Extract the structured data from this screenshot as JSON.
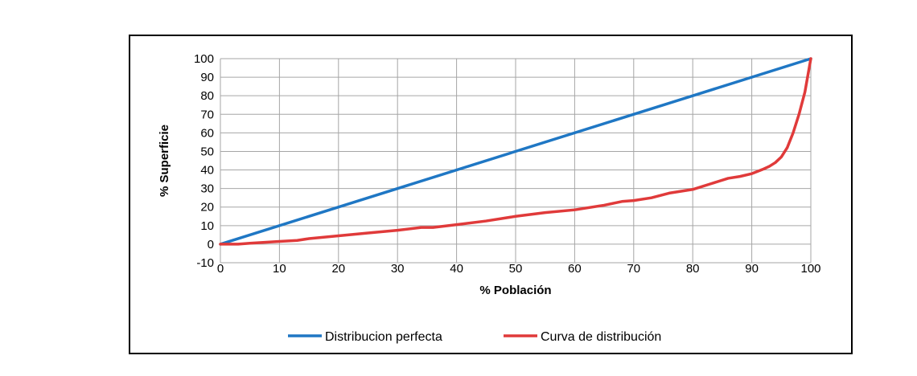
{
  "chart_data": {
    "type": "line",
    "xlabel": "% Población",
    "ylabel": "% Superficie",
    "xlim": [
      0,
      100
    ],
    "ylim": [
      -10,
      100
    ],
    "x_ticks": [
      0,
      10,
      20,
      30,
      40,
      50,
      60,
      70,
      80,
      90,
      100
    ],
    "y_ticks": [
      -10,
      0,
      10,
      20,
      30,
      40,
      50,
      60,
      70,
      80,
      90,
      100
    ],
    "grid": true,
    "legend_position": "bottom",
    "series": [
      {
        "name": "Distribucion perfecta",
        "color": "#1f77c4",
        "x": [
          0,
          100
        ],
        "y": [
          0,
          100
        ]
      },
      {
        "name": "Curva de distribución",
        "color": "#e03a3a",
        "x": [
          0,
          3,
          5,
          10,
          13,
          15,
          20,
          25,
          30,
          34,
          36,
          40,
          45,
          50,
          55,
          60,
          65,
          68,
          70,
          73,
          76,
          80,
          83,
          86,
          88,
          90,
          92,
          93,
          94,
          95,
          96,
          97,
          98,
          99,
          100
        ],
        "y": [
          0,
          0,
          0.5,
          1.5,
          2,
          3,
          4.5,
          6,
          7.5,
          9,
          9,
          10.5,
          12.5,
          15,
          17,
          18.5,
          21,
          23,
          23.5,
          25,
          27.5,
          29.5,
          32.5,
          35.5,
          36.5,
          38,
          40.5,
          42,
          44,
          47,
          52,
          60,
          70,
          82,
          100
        ]
      }
    ]
  }
}
